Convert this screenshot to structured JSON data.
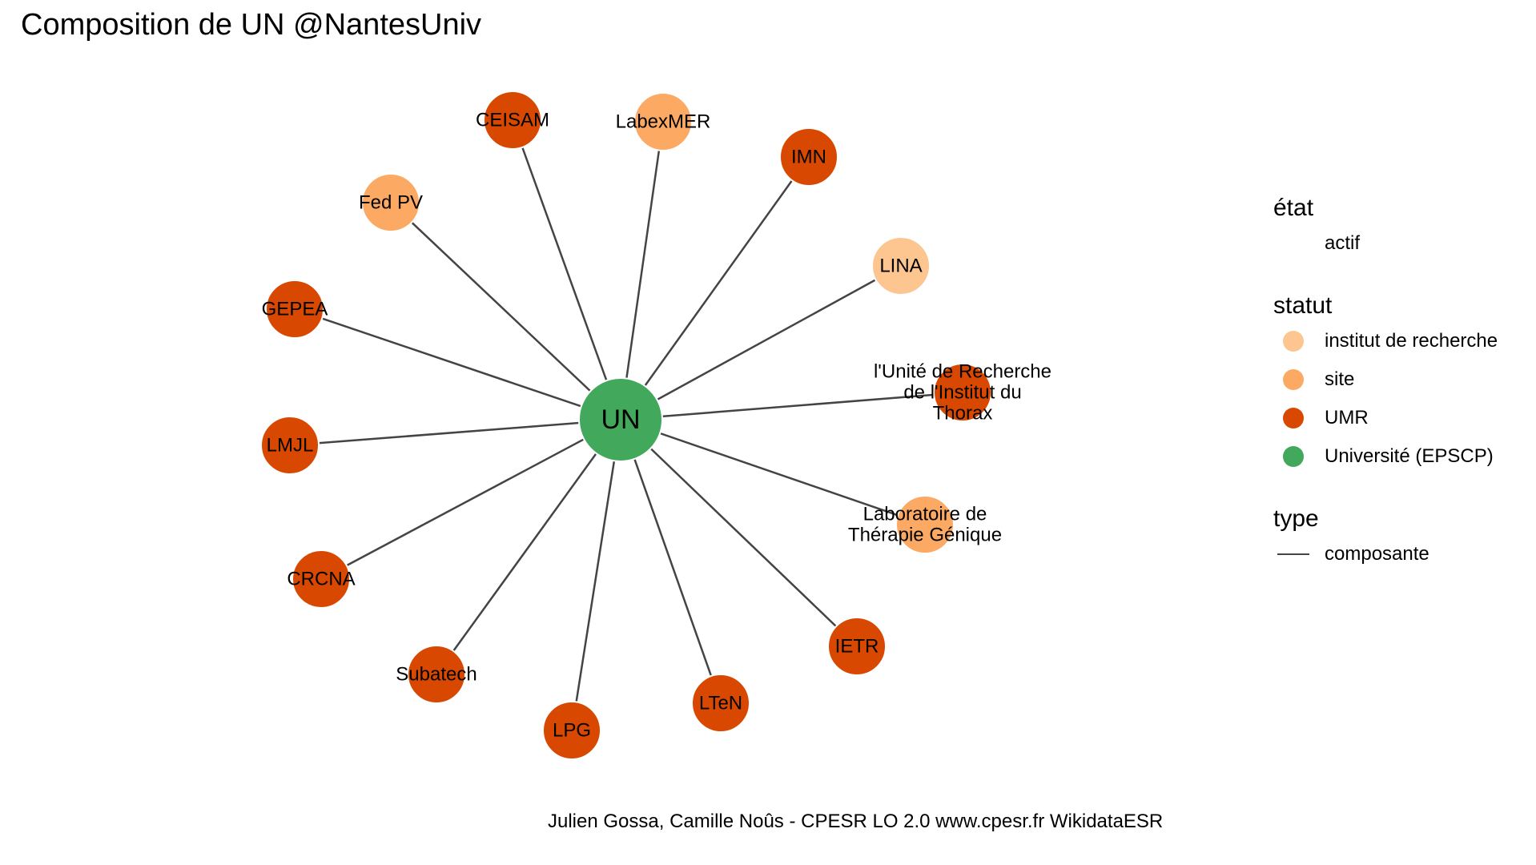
{
  "title": "Composition de UN @NantesUniv",
  "caption": "Julien Gossa, Camille Noûs - CPESR LO 2.0 www.cpesr.fr WikidataESR",
  "colors": {
    "institut de recherche": "#fdc590",
    "site": "#fca964",
    "UMR": "#d94801",
    "Université (EPSCP)": "#41a85c",
    "edge": "#444444"
  },
  "legend": {
    "etat": {
      "title": "état",
      "items": [
        "actif"
      ]
    },
    "statut": {
      "title": "statut",
      "items": [
        {
          "label": "institut de recherche",
          "color": "#fdc590"
        },
        {
          "label": "site",
          "color": "#fca964"
        },
        {
          "label": "UMR",
          "color": "#d94801"
        },
        {
          "label": "Université (EPSCP)",
          "color": "#41a85c"
        }
      ]
    },
    "type": {
      "title": "type",
      "items": [
        "composante"
      ]
    }
  },
  "center": {
    "label": "UN",
    "statut": "Université (EPSCP)"
  },
  "nodes": [
    {
      "label": "CEISAM",
      "statut": "UMR"
    },
    {
      "label": "LabexMER",
      "statut": "site"
    },
    {
      "label": "IMN",
      "statut": "UMR"
    },
    {
      "label": "Fed PV",
      "statut": "site"
    },
    {
      "label": "LINA",
      "statut": "institut de recherche"
    },
    {
      "label": "GEPEA",
      "statut": "UMR"
    },
    {
      "label": "l'Unité de Recherche\nde l'Institut du\nThorax",
      "statut": "UMR"
    },
    {
      "label": "LMJL",
      "statut": "UMR"
    },
    {
      "label": "Laboratoire de\nThérapie Génique",
      "statut": "site"
    },
    {
      "label": "CRCNA",
      "statut": "UMR"
    },
    {
      "label": "IETR",
      "statut": "UMR"
    },
    {
      "label": "Subatech",
      "statut": "UMR"
    },
    {
      "label": "LTeN",
      "statut": "UMR"
    },
    {
      "label": "LPG",
      "statut": "UMR"
    }
  ]
}
